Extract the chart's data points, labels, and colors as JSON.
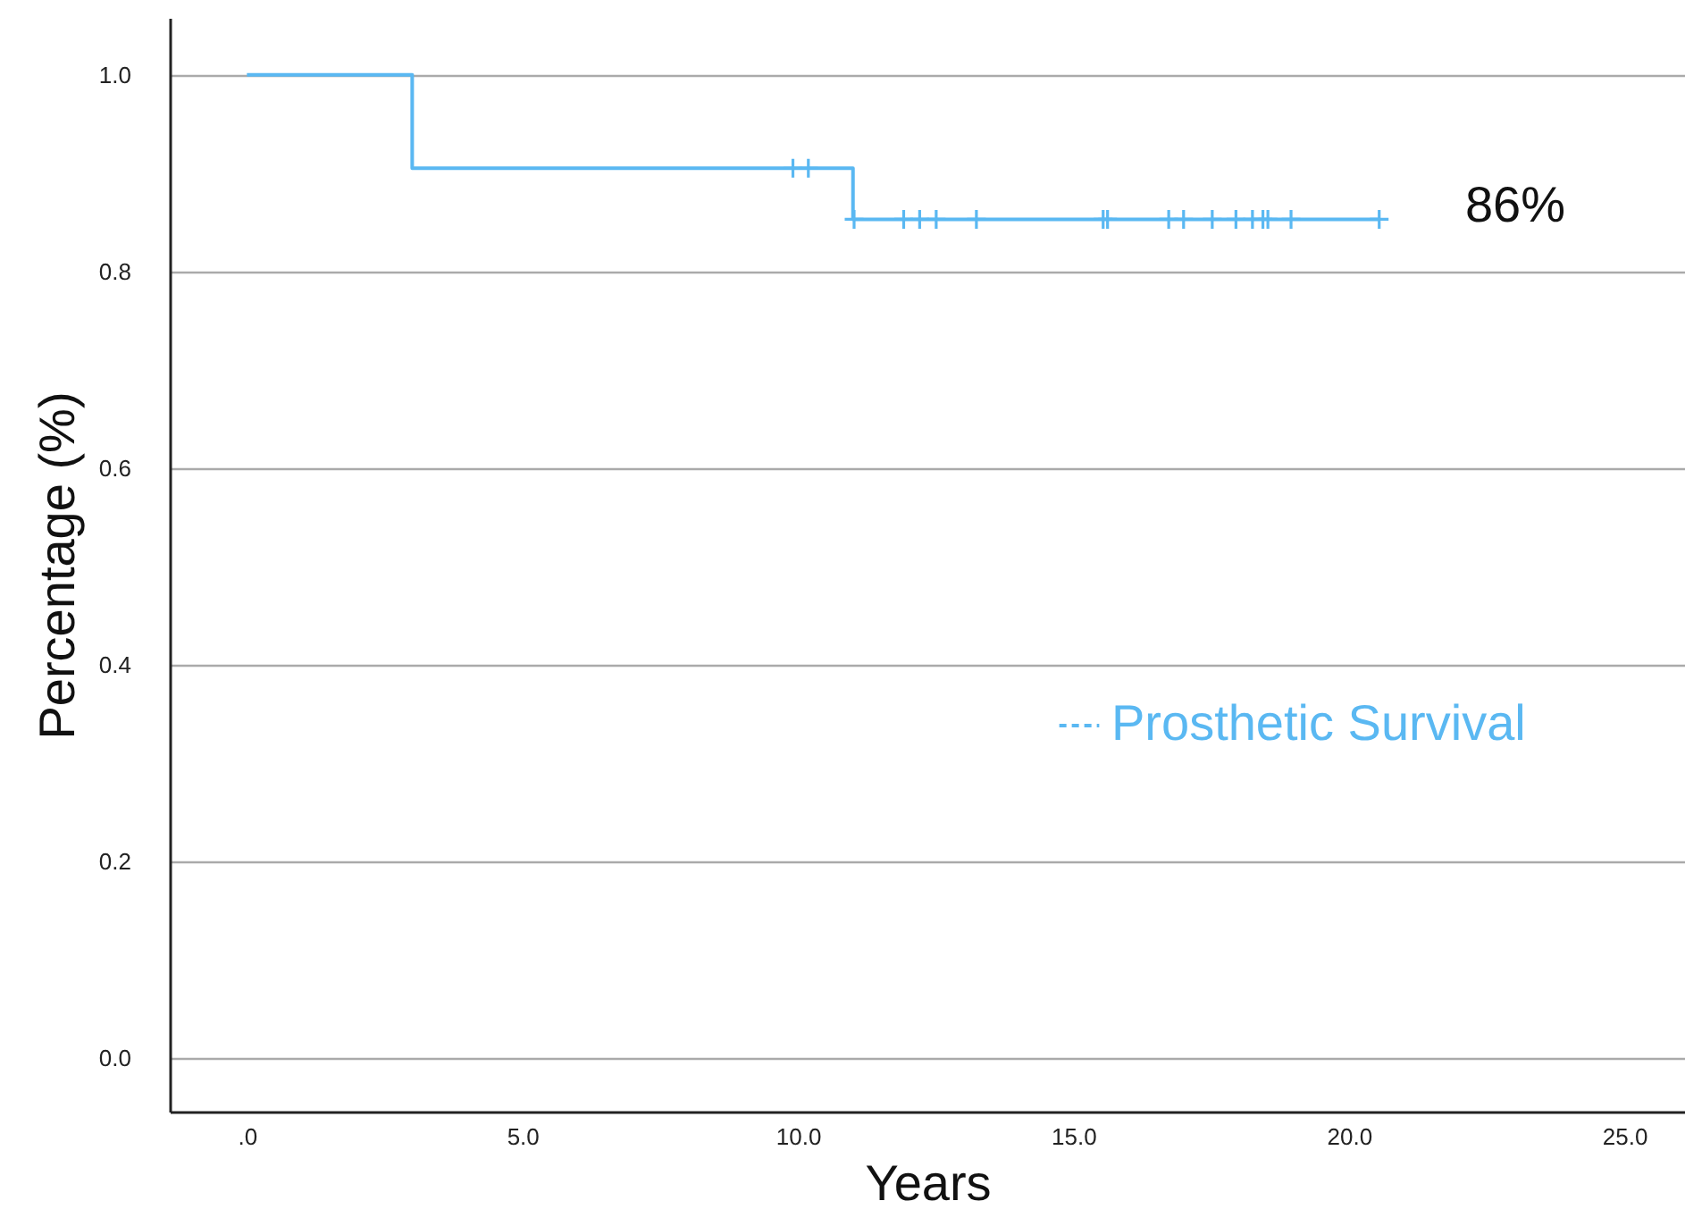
{
  "chart_data": {
    "type": "step",
    "xlabel": "Years",
    "ylabel": "Percentage (%)",
    "xlim": [
      -1.4,
      26.1
    ],
    "ylim": [
      -0.055,
      1.058
    ],
    "xticks": [
      {
        "value": 0,
        "label": ".0"
      },
      {
        "value": 5,
        "label": "5.0"
      },
      {
        "value": 10,
        "label": "10.0"
      },
      {
        "value": 15,
        "label": "15.0"
      },
      {
        "value": 20,
        "label": "20.0"
      },
      {
        "value": 25,
        "label": "25.0"
      }
    ],
    "yticks": [
      {
        "value": 0,
        "label": "0.0"
      },
      {
        "value": 0.2,
        "label": "0.2"
      },
      {
        "value": 0.4,
        "label": "0.4"
      },
      {
        "value": 0.6,
        "label": "0.6"
      },
      {
        "value": 0.8,
        "label": "0.8"
      },
      {
        "value": 1,
        "label": "1.0"
      }
    ],
    "grid": "y",
    "legend": "right",
    "series": [
      {
        "name": "Prosthetic Survival",
        "color": "#5ab8f2",
        "x": [
          0,
          3.0,
          11.0,
          20.55
        ],
        "values": [
          1,
          0.905,
          0.853,
          0.853
        ]
      },
      {
        "type": "scatter",
        "color": "#5ab8f2",
        "marker": "cross",
        "x": [
          9.91,
          10.19,
          11.02,
          11.92,
          12.21,
          12.51,
          13.24,
          15.54,
          15.62,
          16.73,
          17.0,
          17.52,
          17.95,
          18.25,
          18.44,
          18.53,
          18.95,
          20.55
        ],
        "values": [
          0.905,
          0.905,
          0.853,
          0.853,
          0.853,
          0.853,
          0.853,
          0.853,
          0.853,
          0.853,
          0.853,
          0.853,
          0.853,
          0.853,
          0.853,
          0.853,
          0.853,
          0.853
        ]
      }
    ],
    "annotations": [
      "86%"
    ]
  }
}
